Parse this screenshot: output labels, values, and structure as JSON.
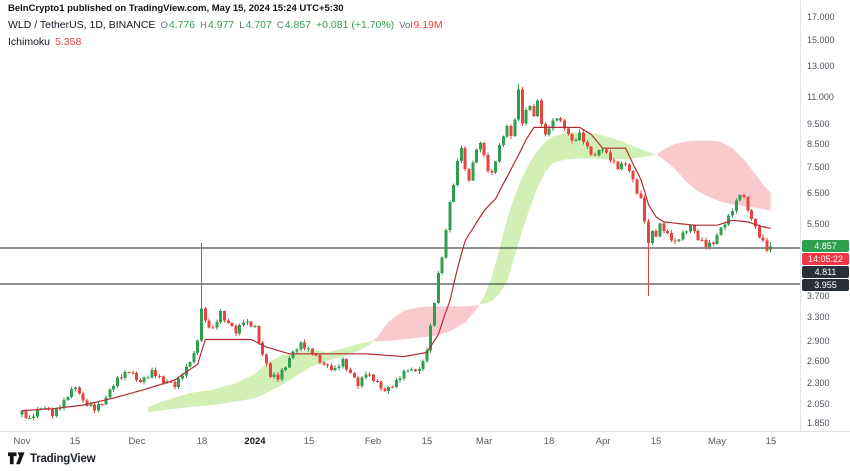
{
  "header": {
    "published_line": "BeInCrypto1 published on TradingView.com, May 15, 2024 15:24 UTC+5:30"
  },
  "legend": {
    "symbol": "WLD / TetherUS, 1D, BINANCE",
    "ohlc": [
      {
        "label": "O",
        "value": "4.776"
      },
      {
        "label": "H",
        "value": "4.977"
      },
      {
        "label": "L",
        "value": "4.707"
      },
      {
        "label": "C",
        "value": "4.857"
      }
    ],
    "change": "+0.081 (+1.70%)",
    "vol_label": "Vol",
    "vol": "9.19M",
    "indicator": "Ichimoku",
    "indicator_value": "5.358"
  },
  "price_axis": {
    "last_badge": "4.857",
    "countdown_badge": "14:05:22",
    "level_badges": [
      {
        "text": "4.811",
        "price": 4.811
      },
      {
        "text": "3.955",
        "price": 3.955
      }
    ]
  },
  "footer": {
    "brand": "TradingView"
  },
  "colors": {
    "up": "#2f9e4f",
    "down": "#e8443f",
    "cloud_up": "#a5e06c",
    "cloud_down": "#f2959b",
    "baseline": "#b02d35",
    "level_line": "#202226",
    "countdown_bg": "#f23645",
    "level_badge_bg": "#2a2e39",
    "axis_text": "#50535e"
  },
  "chart_data": {
    "type": "candlestick",
    "symbol": "WLD/USDT BINANCE",
    "timeframe": "1D",
    "scale": "log",
    "start": "2023-11-01",
    "end": "2024-05-15",
    "last_price": 4.857,
    "ichimoku_value": 5.358,
    "levels": [
      4.811,
      3.955
    ],
    "y_axis": {
      "log": true,
      "range": [
        1.79,
        17.8
      ],
      "ticks": [
        17,
        15,
        13,
        11,
        9.5,
        8.5,
        7.5,
        6.5,
        5.5,
        3.7,
        3.3,
        2.9,
        2.6,
        2.3,
        2.05,
        1.85
      ]
    },
    "time_labels": [
      {
        "text": "Nov",
        "day": 0
      },
      {
        "text": "15",
        "day": 14
      },
      {
        "text": "Dec",
        "day": 30
      },
      {
        "text": "18",
        "day": 47
      },
      {
        "text": "2024",
        "day": 61,
        "strong": true
      },
      {
        "text": "15",
        "day": 75
      },
      {
        "text": "Feb",
        "day": 92
      },
      {
        "text": "15",
        "day": 106
      },
      {
        "text": "Mar",
        "day": 121
      },
      {
        "text": "18",
        "day": 138
      },
      {
        "text": "Apr",
        "day": 152
      },
      {
        "text": "15",
        "day": 166
      },
      {
        "text": "May",
        "day": 182
      },
      {
        "text": "15",
        "day": 196
      }
    ],
    "close_anchors": [
      [
        0,
        1.96
      ],
      [
        2,
        1.88
      ],
      [
        5,
        2.03
      ],
      [
        8,
        1.94
      ],
      [
        11,
        2.08
      ],
      [
        14,
        2.26
      ],
      [
        16,
        2.08
      ],
      [
        19,
        1.99
      ],
      [
        22,
        2.12
      ],
      [
        25,
        2.36
      ],
      [
        28,
        2.45
      ],
      [
        31,
        2.31
      ],
      [
        34,
        2.44
      ],
      [
        37,
        2.33
      ],
      [
        40,
        2.27
      ],
      [
        43,
        2.5
      ],
      [
        45,
        2.68
      ],
      [
        46,
        2.92
      ],
      [
        47,
        3.45
      ],
      [
        48,
        3.22
      ],
      [
        50,
        3.08
      ],
      [
        52,
        3.38
      ],
      [
        54,
        3.18
      ],
      [
        56,
        3.04
      ],
      [
        58,
        3.24
      ],
      [
        61,
        3.1
      ],
      [
        63,
        2.68
      ],
      [
        65,
        2.4
      ],
      [
        67,
        2.36
      ],
      [
        70,
        2.63
      ],
      [
        73,
        2.86
      ],
      [
        76,
        2.7
      ],
      [
        79,
        2.54
      ],
      [
        82,
        2.47
      ],
      [
        84,
        2.6
      ],
      [
        86,
        2.42
      ],
      [
        88,
        2.28
      ],
      [
        90,
        2.44
      ],
      [
        92,
        2.34
      ],
      [
        95,
        2.2
      ],
      [
        98,
        2.31
      ],
      [
        101,
        2.5
      ],
      [
        103,
        2.43
      ],
      [
        105,
        2.58
      ],
      [
        106,
        2.78
      ],
      [
        107,
        3.12
      ],
      [
        108,
        3.58
      ],
      [
        109,
        4.15
      ],
      [
        110,
        4.6
      ],
      [
        111,
        5.3
      ],
      [
        112,
        6.15
      ],
      [
        113,
        6.85
      ],
      [
        114,
        7.65
      ],
      [
        115,
        8.35
      ],
      [
        116,
        7.35
      ],
      [
        117,
        7.05
      ],
      [
        118,
        7.65
      ],
      [
        119,
        8.15
      ],
      [
        120,
        8.6
      ],
      [
        121,
        7.95
      ],
      [
        122,
        7.4
      ],
      [
        123,
        7.2
      ],
      [
        124,
        7.75
      ],
      [
        125,
        8.35
      ],
      [
        126,
        8.9
      ],
      [
        127,
        9.35
      ],
      [
        128,
        8.8
      ],
      [
        129,
        9.8
      ],
      [
        130,
        11.3
      ],
      [
        131,
        9.55
      ],
      [
        132,
        10.15
      ],
      [
        133,
        10.6
      ],
      [
        134,
        9.85
      ],
      [
        135,
        10.65
      ],
      [
        136,
        9.55
      ],
      [
        137,
        8.9
      ],
      [
        138,
        9.35
      ],
      [
        140,
        9.8
      ],
      [
        142,
        9.3
      ],
      [
        144,
        8.6
      ],
      [
        146,
        8.95
      ],
      [
        148,
        8.3
      ],
      [
        150,
        7.95
      ],
      [
        152,
        8.3
      ],
      [
        154,
        7.85
      ],
      [
        156,
        7.45
      ],
      [
        158,
        7.65
      ],
      [
        160,
        6.95
      ],
      [
        161,
        6.55
      ],
      [
        162,
        6.25
      ],
      [
        163,
        5.6
      ],
      [
        164,
        4.9
      ],
      [
        165,
        5.35
      ],
      [
        166,
        5.1
      ],
      [
        167,
        5.45
      ],
      [
        169,
        5.2
      ],
      [
        171,
        4.95
      ],
      [
        173,
        5.18
      ],
      [
        175,
        5.42
      ],
      [
        177,
        5.08
      ],
      [
        179,
        4.86
      ],
      [
        181,
        4.98
      ],
      [
        183,
        5.32
      ],
      [
        185,
        5.72
      ],
      [
        187,
        6.18
      ],
      [
        188,
        6.45
      ],
      [
        189,
        6.28
      ],
      [
        190,
        5.95
      ],
      [
        191,
        5.62
      ],
      [
        192,
        5.38
      ],
      [
        193,
        5.15
      ],
      [
        194,
        4.95
      ],
      [
        195,
        4.776
      ],
      [
        196,
        4.857
      ]
    ],
    "wiggle": [
      0.012,
      -0.016,
      0.02,
      -0.009,
      0.014,
      -0.022,
      0.007,
      0.018,
      -0.013,
      0.009,
      -0.018,
      0.015,
      -0.007,
      0.021,
      -0.011,
      0.005
    ],
    "overrides": {
      "47": {
        "h": 4.95
      },
      "130": {
        "h": 11.79
      },
      "164": {
        "l": 3.7
      },
      "196": {
        "o": 4.776,
        "h": 4.977,
        "l": 4.707,
        "c": 4.857
      }
    },
    "cloud_anchors": [
      [
        33,
        2.02,
        1.96
      ],
      [
        38,
        2.1,
        1.99
      ],
      [
        44,
        2.18,
        2.02
      ],
      [
        50,
        2.22,
        2.04
      ],
      [
        56,
        2.3,
        2.08
      ],
      [
        61,
        2.42,
        2.12
      ],
      [
        64,
        2.56,
        2.18
      ],
      [
        68,
        2.68,
        2.28
      ],
      [
        72,
        2.72,
        2.4
      ],
      [
        76,
        2.76,
        2.52
      ],
      [
        80,
        2.72,
        2.6
      ],
      [
        84,
        2.78,
        2.66
      ],
      [
        88,
        2.85,
        2.74
      ],
      [
        91,
        2.89,
        2.84
      ],
      [
        93,
        2.89,
        2.96
      ],
      [
        96,
        2.9,
        3.22
      ],
      [
        100,
        2.92,
        3.42
      ],
      [
        104,
        2.95,
        3.48
      ],
      [
        108,
        2.98,
        3.5
      ],
      [
        112,
        3.05,
        3.5
      ],
      [
        116,
        3.2,
        3.5
      ],
      [
        119,
        3.45,
        3.52
      ],
      [
        121,
        3.7,
        3.55
      ],
      [
        123,
        4.1,
        3.6
      ],
      [
        125,
        4.8,
        3.75
      ],
      [
        127,
        5.6,
        4.0
      ],
      [
        129,
        6.4,
        4.6
      ],
      [
        131,
        7.1,
        5.3
      ],
      [
        133,
        7.7,
        6.0
      ],
      [
        135,
        8.2,
        6.7
      ],
      [
        137,
        8.6,
        7.3
      ],
      [
        139,
        8.85,
        7.65
      ],
      [
        142,
        9.0,
        7.8
      ],
      [
        146,
        9.05,
        7.85
      ],
      [
        150,
        9.0,
        7.85
      ],
      [
        154,
        8.8,
        7.8
      ],
      [
        158,
        8.55,
        7.82
      ],
      [
        162,
        8.25,
        7.9
      ],
      [
        166,
        8.02,
        8.02
      ],
      [
        168,
        7.8,
        8.25
      ],
      [
        171,
        7.4,
        8.5
      ],
      [
        174,
        6.9,
        8.62
      ],
      [
        177,
        6.55,
        8.66
      ],
      [
        180,
        6.35,
        8.66
      ],
      [
        183,
        6.2,
        8.6
      ],
      [
        186,
        6.1,
        8.3
      ],
      [
        189,
        6.05,
        7.8
      ],
      [
        192,
        6.0,
        7.2
      ],
      [
        194,
        5.95,
        6.8
      ],
      [
        196,
        5.9,
        6.5
      ]
    ],
    "baseline_anchors": [
      [
        0,
        1.98
      ],
      [
        8,
        2.0
      ],
      [
        16,
        2.04
      ],
      [
        24,
        2.12
      ],
      [
        32,
        2.22
      ],
      [
        40,
        2.34
      ],
      [
        46,
        2.55
      ],
      [
        48,
        2.92
      ],
      [
        60,
        2.92
      ],
      [
        64,
        2.8
      ],
      [
        70,
        2.7
      ],
      [
        90,
        2.7
      ],
      [
        100,
        2.66
      ],
      [
        106,
        2.72
      ],
      [
        109,
        3.0
      ],
      [
        112,
        3.6
      ],
      [
        114,
        4.3
      ],
      [
        116,
        5.0
      ],
      [
        118,
        5.35
      ],
      [
        121,
        5.9
      ],
      [
        124,
        6.3
      ],
      [
        127,
        7.1
      ],
      [
        130,
        8.0
      ],
      [
        132,
        8.7
      ],
      [
        134,
        9.3
      ],
      [
        146,
        9.3
      ],
      [
        149,
        8.95
      ],
      [
        152,
        8.3
      ],
      [
        158,
        8.3
      ],
      [
        160,
        7.6
      ],
      [
        162,
        7.0
      ],
      [
        164,
        6.1
      ],
      [
        166,
        5.7
      ],
      [
        168,
        5.55
      ],
      [
        176,
        5.45
      ],
      [
        182,
        5.45
      ],
      [
        186,
        5.6
      ],
      [
        190,
        5.55
      ],
      [
        194,
        5.4
      ],
      [
        196,
        5.358
      ]
    ]
  }
}
